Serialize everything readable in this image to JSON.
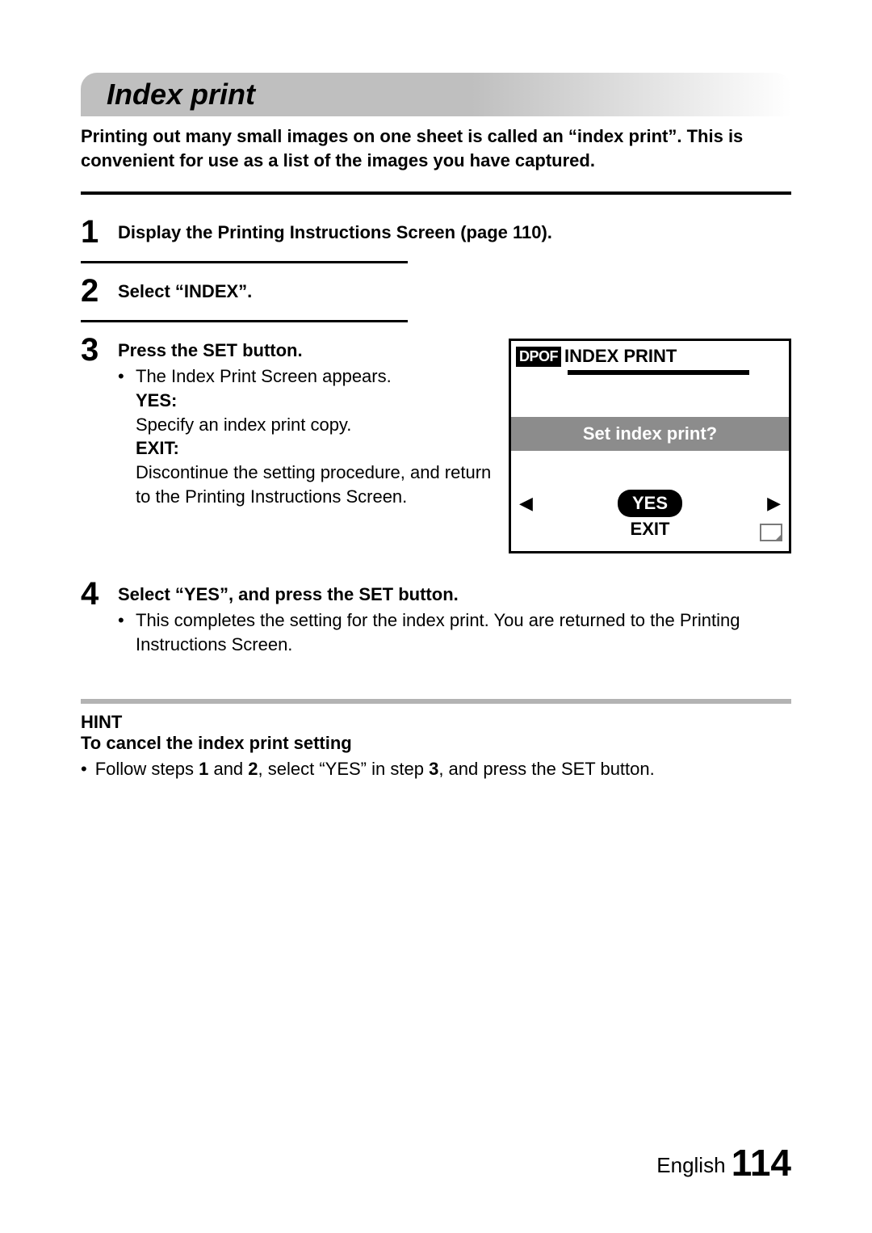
{
  "colors": {
    "title_bar_gray": "#bfbfbf",
    "hint_rule_gray": "#b3b3b3",
    "screen_question_bg": "#8c8c8c",
    "text": "#000000",
    "bg": "#ffffff"
  },
  "typography": {
    "title_fontsize": 36,
    "body_fontsize": 22,
    "step_num_fontsize": 40,
    "page_num_fontsize": 46
  },
  "title": "Index print",
  "intro": "Printing out many small images on one sheet is called an “index print”. This is convenient for use as a list of the images you have captured.",
  "steps": {
    "s1": {
      "num": "1",
      "text": "Display the Printing Instructions Screen (page 110)."
    },
    "s2": {
      "num": "2",
      "text": "Select “INDEX”."
    },
    "s3": {
      "num": "3",
      "head": "Press the SET button.",
      "bullet": "The Index Print Screen appears.",
      "yes_label": "YES:",
      "yes_text": "Specify an index print copy.",
      "exit_label": "EXIT:",
      "exit_text": "Discontinue the setting procedure, and return to the Printing Instructions Screen."
    },
    "s4": {
      "num": "4",
      "head": "Select “YES”, and press the SET button.",
      "bullet": "This completes the setting for the index print. You are returned to the Printing Instructions Screen."
    }
  },
  "screen": {
    "dpof": "DPOF",
    "title": "INDEX PRINT",
    "question": "Set index print?",
    "left_arrow": "◀",
    "right_arrow": "▶",
    "yes": "YES",
    "exit": "EXIT"
  },
  "hint": {
    "title": "HINT",
    "subtitle": "To cancel the index print setting",
    "bullet_pre": "Follow steps ",
    "b1": "1",
    "mid1": " and ",
    "b2": "2",
    "mid2": ", select “YES” in step ",
    "b3": "3",
    "post": ", and press the SET button."
  },
  "footer": {
    "lang": "English",
    "page": "114"
  }
}
